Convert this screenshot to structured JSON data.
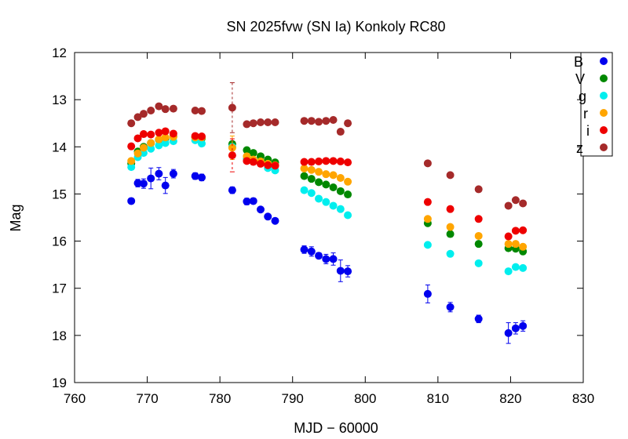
{
  "chart_data": {
    "type": "scatter",
    "title": "SN 2025fvw (SN Ia) Konkoly RC80",
    "xlabel": "MJD − 60000",
    "ylabel": "Mag",
    "xlim": [
      760,
      830
    ],
    "ylim": [
      19,
      12
    ],
    "y_inverted": true,
    "xticks": [
      760,
      770,
      780,
      790,
      800,
      810,
      820,
      830
    ],
    "yticks": [
      12,
      13,
      14,
      15,
      16,
      17,
      18,
      19
    ],
    "legend_position": "top-right",
    "grid": false,
    "series": [
      {
        "name": "B",
        "color": "#0000ee",
        "points": [
          {
            "x": 767.8,
            "y": 15.15,
            "err": 0.06
          },
          {
            "x": 768.7,
            "y": 14.77,
            "err": 0.08
          },
          {
            "x": 769.5,
            "y": 14.78,
            "err": 0.1
          },
          {
            "x": 770.5,
            "y": 14.67,
            "err": 0.22
          },
          {
            "x": 771.6,
            "y": 14.57,
            "err": 0.13
          },
          {
            "x": 772.5,
            "y": 14.82,
            "err": 0.17
          },
          {
            "x": 773.6,
            "y": 14.57,
            "err": 0.09
          },
          {
            "x": 776.6,
            "y": 14.62,
            "err": 0.07
          },
          {
            "x": 777.5,
            "y": 14.65,
            "err": 0.07
          },
          {
            "x": 781.7,
            "y": 14.92,
            "err": 0.07
          },
          {
            "x": 783.7,
            "y": 15.16,
            "err": 0.07
          },
          {
            "x": 784.6,
            "y": 15.15,
            "err": 0.06
          },
          {
            "x": 785.6,
            "y": 15.33,
            "err": 0.05
          },
          {
            "x": 786.6,
            "y": 15.48,
            "err": 0.05
          },
          {
            "x": 787.6,
            "y": 15.57,
            "err": 0.05
          },
          {
            "x": 791.6,
            "y": 16.18,
            "err": 0.08
          },
          {
            "x": 792.6,
            "y": 16.22,
            "err": 0.1
          },
          {
            "x": 793.6,
            "y": 16.31,
            "err": 0.06
          },
          {
            "x": 794.6,
            "y": 16.38,
            "err": 0.1
          },
          {
            "x": 795.6,
            "y": 16.38,
            "err": 0.13
          },
          {
            "x": 796.6,
            "y": 16.63,
            "err": 0.23
          },
          {
            "x": 797.6,
            "y": 16.64,
            "err": 0.12
          },
          {
            "x": 808.6,
            "y": 17.12,
            "err": 0.19
          },
          {
            "x": 811.7,
            "y": 17.4,
            "err": 0.1
          },
          {
            "x": 815.6,
            "y": 17.65,
            "err": 0.08
          },
          {
            "x": 819.7,
            "y": 17.95,
            "err": 0.22
          },
          {
            "x": 820.7,
            "y": 17.85,
            "err": 0.12
          },
          {
            "x": 821.7,
            "y": 17.8,
            "err": 0.11
          }
        ]
      },
      {
        "name": "V",
        "color": "#008800",
        "points": [
          {
            "x": 767.8,
            "y": 14.35
          },
          {
            "x": 768.7,
            "y": 14.1
          },
          {
            "x": 769.5,
            "y": 14.0
          },
          {
            "x": 770.5,
            "y": 13.92
          },
          {
            "x": 771.6,
            "y": 13.85
          },
          {
            "x": 772.5,
            "y": 13.82
          },
          {
            "x": 773.6,
            "y": 13.78
          },
          {
            "x": 776.6,
            "y": 13.8
          },
          {
            "x": 777.5,
            "y": 13.82
          },
          {
            "x": 781.7,
            "y": 13.94
          },
          {
            "x": 783.7,
            "y": 14.07
          },
          {
            "x": 784.6,
            "y": 14.13
          },
          {
            "x": 785.6,
            "y": 14.2
          },
          {
            "x": 786.6,
            "y": 14.27
          },
          {
            "x": 787.6,
            "y": 14.33
          },
          {
            "x": 791.6,
            "y": 14.62
          },
          {
            "x": 792.6,
            "y": 14.68
          },
          {
            "x": 793.6,
            "y": 14.75
          },
          {
            "x": 794.6,
            "y": 14.8
          },
          {
            "x": 795.6,
            "y": 14.86
          },
          {
            "x": 796.6,
            "y": 14.94
          },
          {
            "x": 797.6,
            "y": 15.01
          },
          {
            "x": 808.6,
            "y": 15.62
          },
          {
            "x": 811.7,
            "y": 15.85
          },
          {
            "x": 815.6,
            "y": 16.06
          },
          {
            "x": 819.7,
            "y": 16.15
          },
          {
            "x": 820.7,
            "y": 16.16
          },
          {
            "x": 821.7,
            "y": 16.22
          }
        ]
      },
      {
        "name": "g",
        "color": "#00eeee",
        "points": [
          {
            "x": 767.8,
            "y": 14.43
          },
          {
            "x": 768.7,
            "y": 14.22
          },
          {
            "x": 769.5,
            "y": 14.13
          },
          {
            "x": 770.5,
            "y": 14.04
          },
          {
            "x": 771.6,
            "y": 13.97
          },
          {
            "x": 772.5,
            "y": 13.92
          },
          {
            "x": 773.6,
            "y": 13.88
          },
          {
            "x": 776.6,
            "y": 13.86
          },
          {
            "x": 777.5,
            "y": 13.93
          },
          {
            "x": 781.7,
            "y": 14.0
          },
          {
            "x": 783.7,
            "y": 14.25
          },
          {
            "x": 784.6,
            "y": 14.3
          },
          {
            "x": 785.6,
            "y": 14.35
          },
          {
            "x": 786.6,
            "y": 14.45
          },
          {
            "x": 787.6,
            "y": 14.5
          },
          {
            "x": 791.6,
            "y": 14.92
          },
          {
            "x": 792.6,
            "y": 14.98
          },
          {
            "x": 793.6,
            "y": 15.1
          },
          {
            "x": 794.6,
            "y": 15.17
          },
          {
            "x": 795.6,
            "y": 15.25
          },
          {
            "x": 796.6,
            "y": 15.32
          },
          {
            "x": 797.6,
            "y": 15.45
          },
          {
            "x": 808.6,
            "y": 16.08
          },
          {
            "x": 811.7,
            "y": 16.27
          },
          {
            "x": 815.6,
            "y": 16.47
          },
          {
            "x": 819.7,
            "y": 16.64
          },
          {
            "x": 820.7,
            "y": 16.55
          },
          {
            "x": 821.7,
            "y": 16.57
          }
        ]
      },
      {
        "name": "r",
        "color": "#ffa500",
        "points": [
          {
            "x": 767.8,
            "y": 14.3
          },
          {
            "x": 768.7,
            "y": 14.14
          },
          {
            "x": 769.5,
            "y": 14.02
          },
          {
            "x": 770.5,
            "y": 13.92
          },
          {
            "x": 771.6,
            "y": 13.84
          },
          {
            "x": 772.5,
            "y": 13.8
          },
          {
            "x": 773.6,
            "y": 13.79
          },
          {
            "x": 776.6,
            "y": 13.8
          },
          {
            "x": 777.5,
            "y": 13.8
          },
          {
            "x": 781.7,
            "y": 14.02,
            "err": 0.25
          },
          {
            "x": 783.7,
            "y": 14.2
          },
          {
            "x": 784.6,
            "y": 14.27
          },
          {
            "x": 785.6,
            "y": 14.31
          },
          {
            "x": 786.6,
            "y": 14.36
          },
          {
            "x": 787.6,
            "y": 14.39
          },
          {
            "x": 791.6,
            "y": 14.46
          },
          {
            "x": 792.6,
            "y": 14.49
          },
          {
            "x": 793.6,
            "y": 14.53
          },
          {
            "x": 794.6,
            "y": 14.58
          },
          {
            "x": 795.6,
            "y": 14.6
          },
          {
            "x": 796.6,
            "y": 14.66
          },
          {
            "x": 797.6,
            "y": 14.74
          },
          {
            "x": 808.6,
            "y": 15.53
          },
          {
            "x": 811.7,
            "y": 15.7
          },
          {
            "x": 815.6,
            "y": 15.89
          },
          {
            "x": 819.7,
            "y": 16.06
          },
          {
            "x": 820.7,
            "y": 16.06
          },
          {
            "x": 821.7,
            "y": 16.12
          }
        ]
      },
      {
        "name": "i",
        "color": "#ee0000",
        "points": [
          {
            "x": 767.8,
            "y": 13.99
          },
          {
            "x": 768.7,
            "y": 13.82
          },
          {
            "x": 769.5,
            "y": 13.73
          },
          {
            "x": 770.5,
            "y": 13.74
          },
          {
            "x": 771.6,
            "y": 13.7
          },
          {
            "x": 772.5,
            "y": 13.67
          },
          {
            "x": 773.6,
            "y": 13.72
          },
          {
            "x": 776.6,
            "y": 13.77
          },
          {
            "x": 777.5,
            "y": 13.78
          },
          {
            "x": 781.7,
            "y": 14.18,
            "err": 0.35
          },
          {
            "x": 783.7,
            "y": 14.3
          },
          {
            "x": 784.6,
            "y": 14.32
          },
          {
            "x": 785.6,
            "y": 14.36
          },
          {
            "x": 786.6,
            "y": 14.39
          },
          {
            "x": 787.6,
            "y": 14.4
          },
          {
            "x": 791.6,
            "y": 14.32
          },
          {
            "x": 792.6,
            "y": 14.32
          },
          {
            "x": 793.6,
            "y": 14.31
          },
          {
            "x": 794.6,
            "y": 14.3
          },
          {
            "x": 795.6,
            "y": 14.3
          },
          {
            "x": 796.6,
            "y": 14.31
          },
          {
            "x": 797.6,
            "y": 14.33
          },
          {
            "x": 808.6,
            "y": 15.17
          },
          {
            "x": 811.7,
            "y": 15.32
          },
          {
            "x": 815.6,
            "y": 15.53
          },
          {
            "x": 819.7,
            "y": 15.9
          },
          {
            "x": 820.7,
            "y": 15.78
          },
          {
            "x": 821.7,
            "y": 15.77
          }
        ]
      },
      {
        "name": "z",
        "color": "#a52a2a",
        "points": [
          {
            "x": 767.8,
            "y": 13.5
          },
          {
            "x": 768.7,
            "y": 13.37
          },
          {
            "x": 769.5,
            "y": 13.3
          },
          {
            "x": 770.5,
            "y": 13.23
          },
          {
            "x": 771.6,
            "y": 13.14
          },
          {
            "x": 772.5,
            "y": 13.2
          },
          {
            "x": 773.6,
            "y": 13.19
          },
          {
            "x": 776.6,
            "y": 13.23
          },
          {
            "x": 777.5,
            "y": 13.24
          },
          {
            "x": 781.7,
            "y": 13.17,
            "err": 0.53
          },
          {
            "x": 783.7,
            "y": 13.52
          },
          {
            "x": 784.6,
            "y": 13.5
          },
          {
            "x": 785.6,
            "y": 13.48
          },
          {
            "x": 786.6,
            "y": 13.48
          },
          {
            "x": 787.6,
            "y": 13.48
          },
          {
            "x": 791.6,
            "y": 13.45
          },
          {
            "x": 792.6,
            "y": 13.45
          },
          {
            "x": 793.6,
            "y": 13.47
          },
          {
            "x": 794.6,
            "y": 13.45
          },
          {
            "x": 795.6,
            "y": 13.43
          },
          {
            "x": 796.6,
            "y": 13.68
          },
          {
            "x": 797.6,
            "y": 13.5
          },
          {
            "x": 808.6,
            "y": 14.35
          },
          {
            "x": 811.7,
            "y": 14.6
          },
          {
            "x": 815.6,
            "y": 14.9
          },
          {
            "x": 819.7,
            "y": 15.25
          },
          {
            "x": 820.7,
            "y": 15.13
          },
          {
            "x": 821.7,
            "y": 15.2
          }
        ]
      }
    ]
  }
}
